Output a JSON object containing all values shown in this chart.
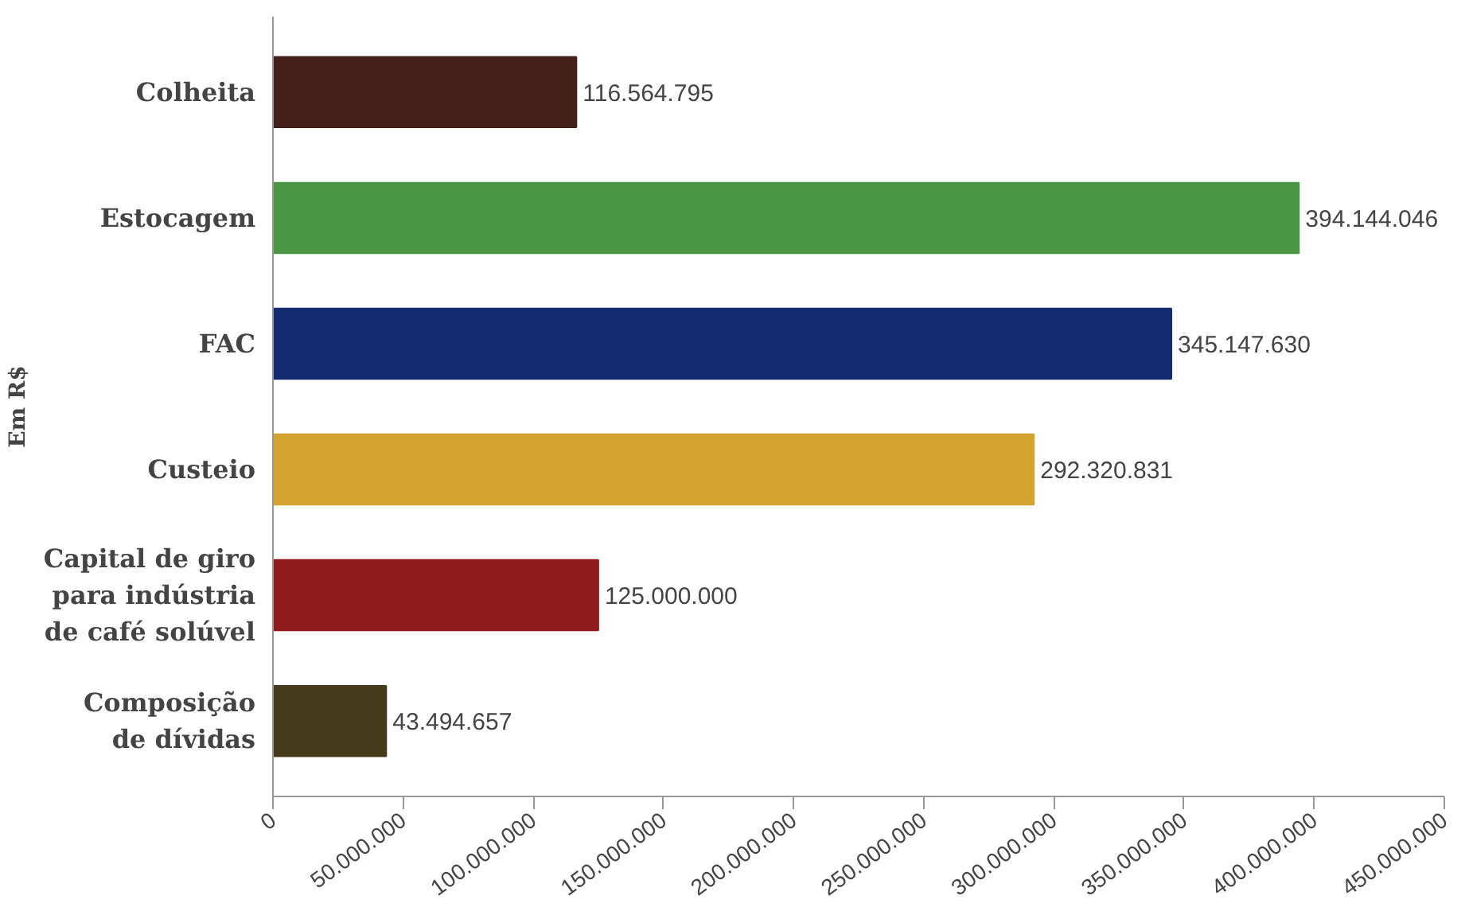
{
  "chart_data": {
    "type": "bar",
    "orientation": "horizontal",
    "ylabel": "Em R$",
    "categories": [
      "Colheita",
      "Estocagem",
      "FAC",
      "Custeio",
      "Capital de giro\npara indústria\nde café solúvel",
      "Composição\nde dívidas"
    ],
    "values": [
      116564795,
      394144046,
      345147630,
      292320831,
      125000000,
      43494657
    ],
    "colors": [
      "#43201a",
      "#4a9645",
      "#142a72",
      "#d4a32f",
      "#8e1a1d",
      "#463a1c"
    ],
    "value_labels": [
      "116.564.795",
      "394.144.046",
      "345.147.630",
      "292.320.831",
      "125.000.000",
      "43.494.657"
    ],
    "xlim": [
      0,
      450000000
    ],
    "xticks": [
      0,
      {
        "value": 50000000,
        "label": "50.000.000"
      },
      {
        "value": 100000000,
        "label": "100.000.000"
      },
      {
        "value": 150000000,
        "label": "150.000.000"
      },
      {
        "value": 200000000,
        "label": "200.000.000"
      },
      {
        "value": 250000000,
        "label": "250.000.000"
      },
      {
        "value": 300000000,
        "label": "300.000.000"
      },
      {
        "value": 350000000,
        "label": "350.000.000"
      },
      {
        "value": 400000000,
        "label": "400.000.000"
      },
      {
        "value": 450000000,
        "label": "450.000.000"
      }
    ],
    "grid": false
  }
}
